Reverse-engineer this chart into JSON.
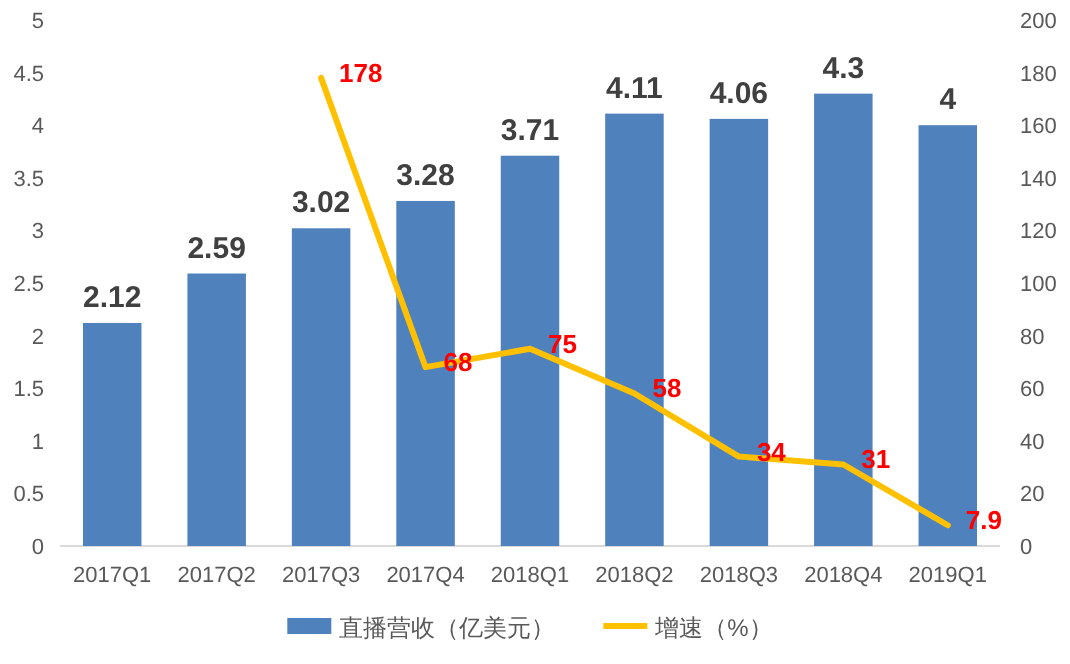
{
  "chart_data": {
    "type": "bar",
    "categories": [
      "2017Q1",
      "2017Q2",
      "2017Q3",
      "2017Q4",
      "2018Q1",
      "2018Q2",
      "2018Q3",
      "2018Q4",
      "2019Q1"
    ],
    "series": [
      {
        "name": "直播营收（亿美元）",
        "color": "#4f81bd",
        "values": [
          2.12,
          2.59,
          3.02,
          3.28,
          3.71,
          4.11,
          4.06,
          4.3,
          4
        ]
      },
      {
        "name": "增速（%）",
        "type": "line",
        "axis": "y2",
        "color": "#ffc000",
        "values": [
          null,
          null,
          178,
          68,
          75,
          58,
          34,
          31,
          7.9
        ]
      }
    ],
    "ylim": [
      0,
      5
    ],
    "yticks": [
      0,
      0.5,
      1,
      1.5,
      2,
      2.5,
      3,
      3.5,
      4,
      4.5,
      5
    ],
    "y2lim": [
      0,
      200
    ],
    "y2ticks": [
      0,
      20,
      40,
      60,
      80,
      100,
      120,
      140,
      160,
      180,
      200
    ],
    "data_labels": true,
    "legend": "bottom"
  }
}
